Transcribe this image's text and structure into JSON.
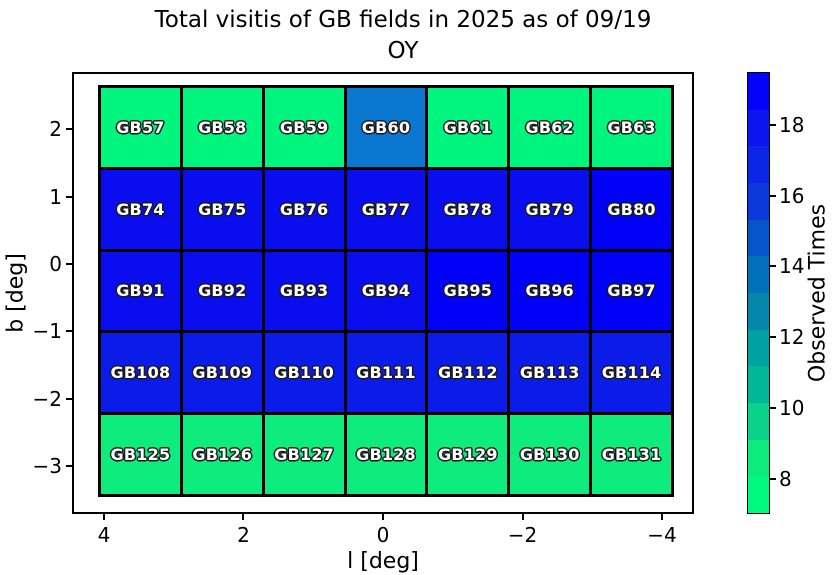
{
  "header": {
    "title_line1": "Total visitis of GB fields in 2025 as of 09/19",
    "title_line2": "OY"
  },
  "chart_data": {
    "type": "heatmap",
    "title": "Total visitis of GB fields in 2025 as of 09/19 OY",
    "xlabel": "l [deg]",
    "ylabel": "b [deg]",
    "xlim": [
      4.43,
      -4.43
    ],
    "ylim": [
      2.82,
      -3.68
    ],
    "grid_on": false,
    "x_ticks": [
      {
        "label": "4",
        "value": 4
      },
      {
        "label": "2",
        "value": 2
      },
      {
        "label": "0",
        "value": 0
      },
      {
        "label": "−2",
        "value": -2
      },
      {
        "label": "−4",
        "value": -4
      }
    ],
    "y_ticks": [
      {
        "label": "2",
        "value": 2
      },
      {
        "label": "1",
        "value": 1
      },
      {
        "label": "0",
        "value": 0
      },
      {
        "label": "−1",
        "value": -1
      },
      {
        "label": "−2",
        "value": -2
      },
      {
        "label": "−3",
        "value": -3
      }
    ],
    "colorbar_label": "Observed Times",
    "colorbar_vmin": 7,
    "colorbar_vmax": 19.5,
    "colorbar_ticks": [
      {
        "label": "18",
        "value": 18
      },
      {
        "label": "16",
        "value": 16
      },
      {
        "label": "14",
        "value": 14
      },
      {
        "label": "12",
        "value": 12
      },
      {
        "label": "10",
        "value": 10
      },
      {
        "label": "8",
        "value": 8
      }
    ],
    "colormap_segments_bottom_to_top": [
      "#00fa7f",
      "#0deb7d",
      "#0cd18b",
      "#00b898",
      "#01a0a3",
      "#0587ac",
      "#0370bd",
      "#0556c8",
      "#0b39da",
      "#0b27e5",
      "#0a15f0",
      "#0403fa"
    ],
    "l_centers": [
      3.8,
      2.5,
      1.3,
      0.0,
      -1.3,
      -2.5,
      -3.8
    ],
    "b_centers": [
      2.0,
      0.8,
      -0.4,
      -1.6,
      -2.8
    ],
    "rows": [
      {
        "b": 2.0,
        "cells": [
          {
            "field": "GB57",
            "observed_times": 7,
            "color": "#00f57e"
          },
          {
            "field": "GB58",
            "observed_times": 7,
            "color": "#00f57e"
          },
          {
            "field": "GB59",
            "observed_times": 7,
            "color": "#00f57e"
          },
          {
            "field": "GB60",
            "observed_times": 14,
            "color": "#0a78d0"
          },
          {
            "field": "GB61",
            "observed_times": 7,
            "color": "#00f57e"
          },
          {
            "field": "GB62",
            "observed_times": 7,
            "color": "#00f57e"
          },
          {
            "field": "GB63",
            "observed_times": 7,
            "color": "#00f57e"
          }
        ]
      },
      {
        "b": 0.8,
        "cells": [
          {
            "field": "GB74",
            "observed_times": 18,
            "color": "#0a0eee"
          },
          {
            "field": "GB75",
            "observed_times": 18,
            "color": "#0a0eee"
          },
          {
            "field": "GB76",
            "observed_times": 18,
            "color": "#0a0eee"
          },
          {
            "field": "GB77",
            "observed_times": 18,
            "color": "#0a0eee"
          },
          {
            "field": "GB78",
            "observed_times": 18,
            "color": "#0a0eee"
          },
          {
            "field": "GB79",
            "observed_times": 18,
            "color": "#0a0eee"
          },
          {
            "field": "GB80",
            "observed_times": 19,
            "color": "#0201f8"
          }
        ]
      },
      {
        "b": -0.4,
        "cells": [
          {
            "field": "GB91",
            "observed_times": 18,
            "color": "#0a0eee"
          },
          {
            "field": "GB92",
            "observed_times": 18,
            "color": "#0a0eee"
          },
          {
            "field": "GB93",
            "observed_times": 18,
            "color": "#0a0eee"
          },
          {
            "field": "GB94",
            "observed_times": 18,
            "color": "#0a0eee"
          },
          {
            "field": "GB95",
            "observed_times": 19,
            "color": "#0201f8"
          },
          {
            "field": "GB96",
            "observed_times": 19,
            "color": "#0201f8"
          },
          {
            "field": "GB97",
            "observed_times": 19,
            "color": "#0201f8"
          }
        ]
      },
      {
        "b": -1.6,
        "cells": [
          {
            "field": "GB108",
            "observed_times": 17,
            "color": "#0b1be8"
          },
          {
            "field": "GB109",
            "observed_times": 17,
            "color": "#0b1be8"
          },
          {
            "field": "GB110",
            "observed_times": 17,
            "color": "#0b1be8"
          },
          {
            "field": "GB111",
            "observed_times": 17,
            "color": "#0b1be8"
          },
          {
            "field": "GB112",
            "observed_times": 17,
            "color": "#0b1be8"
          },
          {
            "field": "GB113",
            "observed_times": 17,
            "color": "#0b1be8"
          },
          {
            "field": "GB114",
            "observed_times": 17,
            "color": "#0b1be8"
          }
        ]
      },
      {
        "b": -2.8,
        "cells": [
          {
            "field": "GB125",
            "observed_times": 8,
            "color": "#0dec7d"
          },
          {
            "field": "GB126",
            "observed_times": 8,
            "color": "#0dec7d"
          },
          {
            "field": "GB127",
            "observed_times": 8,
            "color": "#0dec7d"
          },
          {
            "field": "GB128",
            "observed_times": 8,
            "color": "#0dec7d"
          },
          {
            "field": "GB129",
            "observed_times": 8,
            "color": "#0dec7d"
          },
          {
            "field": "GB130",
            "observed_times": 8,
            "color": "#0dec7d"
          },
          {
            "field": "GB131",
            "observed_times": 8,
            "color": "#0dec7d"
          }
        ]
      }
    ]
  }
}
